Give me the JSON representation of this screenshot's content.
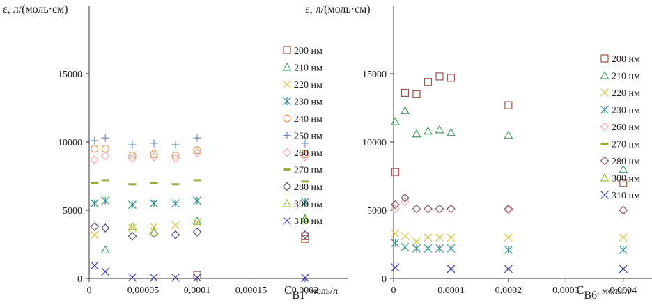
{
  "chart_data": [
    {
      "type": "scatter",
      "ylabel": "ε, л/(моль·см)",
      "xlabel_main": "С",
      "xlabel_sub": "В1",
      "xlabel_unit": ", моль/л",
      "xlim": [
        0,
        0.00024
      ],
      "ylim": [
        0,
        20000
      ],
      "xticks": [
        0,
        5e-05,
        0.0001,
        0.00015,
        0.0002
      ],
      "xtick_labels": [
        "0",
        "0,00005",
        "0,0001",
        "0,00015",
        "0,0002"
      ],
      "yticks": [
        0,
        5000,
        10000,
        15000
      ],
      "ytick_labels": [
        "0",
        "5000",
        "10000",
        "15000"
      ],
      "grid": false,
      "legend_position": "right",
      "series": [
        {
          "name": "200  нм",
          "marker": "square",
          "color": "#a0524d",
          "points": [
            [
              0.0001,
              250
            ],
            [
              0.0002,
              2900
            ],
            [
              0.0002,
              3100
            ]
          ]
        },
        {
          "name": "210  нм",
          "marker": "triangle",
          "color": "#4aa36a",
          "points": [
            [
              1.5e-05,
              2100
            ],
            [
              0.0001,
              4200
            ],
            [
              0.0002,
              4400
            ]
          ]
        },
        {
          "name": "220  нм",
          "marker": "x",
          "color": "#d8c33a",
          "points": [
            [
              5e-06,
              3200
            ],
            [
              4e-05,
              3700
            ],
            [
              6e-05,
              3800
            ],
            [
              8e-05,
              3900
            ],
            [
              0.0001,
              4100
            ]
          ]
        },
        {
          "name": "230  нм",
          "marker": "asterisk",
          "color": "#2e8f88",
          "points": [
            [
              5e-06,
              5500
            ],
            [
              1.5e-05,
              5700
            ],
            [
              4e-05,
              5400
            ],
            [
              6e-05,
              5500
            ],
            [
              8e-05,
              5500
            ],
            [
              0.0001,
              5700
            ],
            [
              0.0002,
              5600
            ]
          ]
        },
        {
          "name": "240  нм",
          "marker": "circle",
          "color": "#e39b5a",
          "points": [
            [
              5e-06,
              9500
            ],
            [
              1.5e-05,
              9500
            ],
            [
              4e-05,
              9000
            ],
            [
              6e-05,
              9100
            ],
            [
              8e-05,
              9000
            ],
            [
              0.0001,
              9400
            ],
            [
              0.0002,
              9100
            ]
          ]
        },
        {
          "name": "250  нм",
          "marker": "plus",
          "color": "#6a8fc8",
          "points": [
            [
              5e-06,
              10100
            ],
            [
              1.5e-05,
              10300
            ],
            [
              4e-05,
              9800
            ],
            [
              6e-05,
              9900
            ],
            [
              8e-05,
              9800
            ],
            [
              0.0001,
              10300
            ],
            [
              0.0002,
              9900
            ]
          ]
        },
        {
          "name": "260  нм",
          "marker": "diamond",
          "color": "#f0a9b0",
          "points": [
            [
              5e-06,
              8700
            ],
            [
              1.5e-05,
              9000
            ],
            [
              4e-05,
              8800
            ],
            [
              6e-05,
              8900
            ],
            [
              8e-05,
              8800
            ],
            [
              0.0001,
              9200
            ],
            [
              0.0002,
              8900
            ]
          ]
        },
        {
          "name": "270  нм",
          "marker": "dash",
          "color": "#9aab3d",
          "points": [
            [
              5e-06,
              7000
            ],
            [
              1.5e-05,
              7200
            ],
            [
              4e-05,
              6900
            ],
            [
              6e-05,
              7000
            ],
            [
              8e-05,
              6900
            ],
            [
              0.0001,
              7200
            ],
            [
              0.0002,
              7100
            ]
          ]
        },
        {
          "name": "280  нм",
          "marker": "diamond",
          "color": "#5e4a7a",
          "points": [
            [
              5e-06,
              3800
            ],
            [
              1.5e-05,
              3700
            ],
            [
              4e-05,
              3100
            ],
            [
              6e-05,
              3300
            ],
            [
              8e-05,
              3200
            ],
            [
              0.0001,
              3400
            ],
            [
              0.0002,
              3200
            ]
          ]
        },
        {
          "name": "300  нм",
          "marker": "triangle",
          "color": "#9ac23c",
          "points": [
            [
              4e-05,
              3800
            ],
            [
              6e-05,
              3400
            ],
            [
              0.0002,
              4300
            ]
          ]
        },
        {
          "name": "310  нм",
          "marker": "x",
          "color": "#3a3aa8",
          "points": [
            [
              5e-06,
              950
            ],
            [
              1.5e-05,
              500
            ],
            [
              4e-05,
              80
            ],
            [
              6e-05,
              60
            ],
            [
              8e-05,
              60
            ],
            [
              0.0001,
              60
            ],
            [
              0.0002,
              50
            ]
          ]
        }
      ]
    },
    {
      "type": "scatter",
      "ylabel": "ε, л/(моль·см)",
      "xlabel_main": "С",
      "xlabel_sub": "В6",
      "xlabel_unit": ", моль/л",
      "xlim": [
        0,
        0.00045
      ],
      "ylim": [
        0,
        20000
      ],
      "xticks": [
        0,
        0.0001,
        0.0002,
        0.0003,
        0.0004
      ],
      "xtick_labels": [
        "0",
        "0,0001",
        "0,0002",
        "0,0003",
        "0,0004"
      ],
      "yticks": [
        0,
        5000,
        10000,
        15000
      ],
      "ytick_labels": [
        "0",
        "5000",
        "10000",
        "15000"
      ],
      "grid": false,
      "legend_position": "right",
      "series": [
        {
          "name": "200  нм",
          "marker": "square",
          "color": "#a0524d",
          "points": [
            [
              3e-06,
              7800
            ],
            [
              2e-05,
              13600
            ],
            [
              4e-05,
              13500
            ],
            [
              6e-05,
              14400
            ],
            [
              8e-05,
              14800
            ],
            [
              0.0001,
              14700
            ],
            [
              0.0002,
              12700
            ],
            [
              0.0004,
              7000
            ]
          ]
        },
        {
          "name": "210  нм",
          "marker": "triangle",
          "color": "#4aa36a",
          "points": [
            [
              3e-06,
              11500
            ],
            [
              2e-05,
              12300
            ],
            [
              4e-05,
              10600
            ],
            [
              6e-05,
              10800
            ],
            [
              8e-05,
              10900
            ],
            [
              0.0001,
              10700
            ],
            [
              0.0002,
              10500
            ],
            [
              0.0004,
              8000
            ]
          ]
        },
        {
          "name": "220  нм",
          "marker": "x",
          "color": "#d8c33a",
          "points": [
            [
              3e-06,
              3300
            ],
            [
              2e-05,
              3100
            ],
            [
              4e-05,
              2700
            ],
            [
              6e-05,
              3000
            ],
            [
              8e-05,
              3000
            ],
            [
              0.0001,
              3000
            ],
            [
              0.0002,
              3000
            ],
            [
              0.0004,
              3000
            ]
          ]
        },
        {
          "name": "230  нм",
          "marker": "asterisk",
          "color": "#2e8f88",
          "points": [
            [
              3e-06,
              2600
            ],
            [
              2e-05,
              2300
            ],
            [
              4e-05,
              2200
            ],
            [
              6e-05,
              2200
            ],
            [
              8e-05,
              2200
            ],
            [
              0.0001,
              2200
            ],
            [
              0.0002,
              2100
            ],
            [
              0.0004,
              2100
            ]
          ]
        },
        {
          "name": "260  нм",
          "marker": "diamond",
          "color": "#f0a9b0",
          "points": [
            [
              3e-06,
              5100
            ],
            [
              2e-05,
              5600
            ],
            [
              0.0001,
              5100
            ],
            [
              0.0002,
              5000
            ],
            [
              0.0004,
              5000
            ]
          ]
        },
        {
          "name": "270  нм",
          "marker": "dash",
          "color": "#9aab3d",
          "points": []
        },
        {
          "name": "280  нм",
          "marker": "diamond",
          "color": "#8c5a6a",
          "points": [
            [
              3e-06,
              5400
            ],
            [
              2e-05,
              5900
            ],
            [
              4e-05,
              5100
            ],
            [
              6e-05,
              5100
            ],
            [
              8e-05,
              5100
            ],
            [
              0.0001,
              5100
            ],
            [
              0.0002,
              5100
            ],
            [
              0.0004,
              5000
            ]
          ]
        },
        {
          "name": "300  нм",
          "marker": "triangle",
          "color": "#9ac23c",
          "points": []
        },
        {
          "name": "310  нм",
          "marker": "x",
          "color": "#3a3aa8",
          "points": [
            [
              3e-06,
              800
            ],
            [
              0.0001,
              700
            ],
            [
              0.0002,
              700
            ],
            [
              0.0004,
              700
            ]
          ]
        }
      ]
    }
  ]
}
